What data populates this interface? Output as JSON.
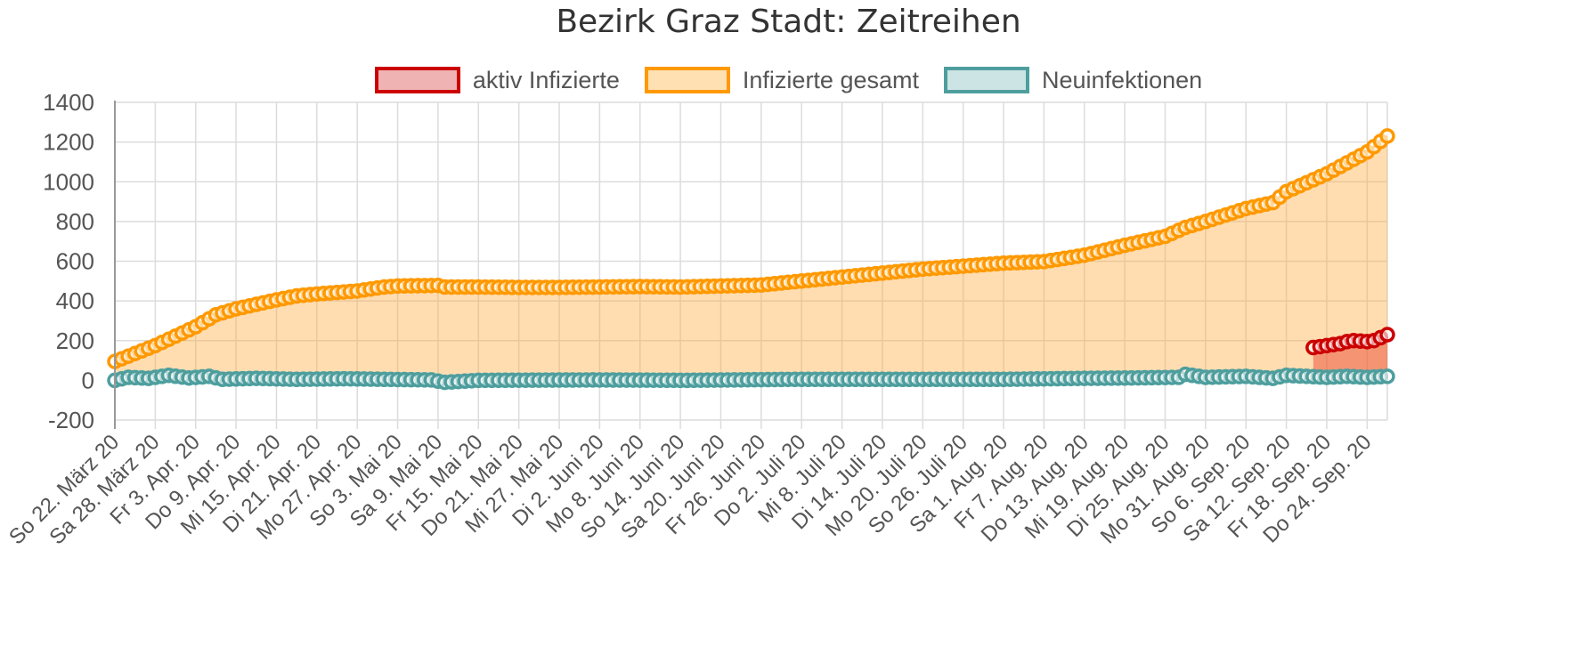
{
  "chart_data": {
    "type": "line",
    "title": "Bezirk Graz Stadt: Zeitreihen",
    "xlabel": "",
    "ylabel": "",
    "ylim": [
      -200,
      1400
    ],
    "yticks": [
      "1400",
      "1200",
      "1000",
      "800",
      "600",
      "400",
      "200",
      "0",
      "-200"
    ],
    "xtick_labels": [
      "So 22. März 20",
      "Sa 28. März 20",
      "Fr 3. Apr. 20",
      "Do 9. Apr. 20",
      "Mi 15. Apr. 20",
      "Di 21. Apr. 20",
      "Mo 27. Apr. 20",
      "So 3. Mai 20",
      "Sa 9. Mai 20",
      "Fr 15. Mai 20",
      "Do 21. Mai 20",
      "Mi 27. Mai 20",
      "Di 2. Juni 20",
      "Mo 8. Juni 20",
      "So 14. Juni 20",
      "Sa 20. Juni 20",
      "Fr 26. Juni 20",
      "Do 2. Juli 20",
      "Mi 8. Juli 20",
      "Di 14. Juli 20",
      "Mo 20. Juli 20",
      "So 26. Juli 20",
      "Sa 1. Aug. 20",
      "Fr 7. Aug. 20",
      "Do 13. Aug. 20",
      "Mi 19. Aug. 20",
      "Di 25. Aug. 20",
      "Mo 31. Aug. 20",
      "So 6. Sep. 20",
      "Sa 12. Sep. 20",
      "Fr 18. Sep. 20",
      "Do 24. Sep. 20"
    ],
    "x_start": "2020-03-22",
    "x_end": "2020-09-27",
    "grid": true,
    "legend_position": "top",
    "series": [
      {
        "name": "aktiv Infizierte",
        "line_color": "#cc0000",
        "fill_color": "rgba(230,60,40,0.45)",
        "legend_fill": "#f0b3b3",
        "start": "2020-09-16",
        "points": [
          [
            "2020-09-16",
            165
          ],
          [
            "2020-09-17",
            170
          ],
          [
            "2020-09-18",
            175
          ],
          [
            "2020-09-19",
            180
          ],
          [
            "2020-09-20",
            185
          ],
          [
            "2020-09-21",
            195
          ],
          [
            "2020-09-22",
            200
          ],
          [
            "2020-09-23",
            198
          ],
          [
            "2020-09-24",
            195
          ],
          [
            "2020-09-25",
            200
          ],
          [
            "2020-09-26",
            215
          ],
          [
            "2020-09-27",
            230
          ]
        ]
      },
      {
        "name": "Infizierte gesamt",
        "line_color": "#ff9900",
        "fill_color": "rgba(255,170,60,0.40)",
        "legend_fill": "#ffe0b2",
        "start": "2020-03-22",
        "points": [
          [
            "2020-03-22",
            95
          ],
          [
            "2020-03-28",
            175
          ],
          [
            "2020-04-03",
            270
          ],
          [
            "2020-04-06",
            330
          ],
          [
            "2020-04-09",
            360
          ],
          [
            "2020-04-15",
            405
          ],
          [
            "2020-04-18",
            425
          ],
          [
            "2020-04-21",
            435
          ],
          [
            "2020-04-27",
            450
          ],
          [
            "2020-05-01",
            470
          ],
          [
            "2020-05-03",
            475
          ],
          [
            "2020-05-09",
            478
          ],
          [
            "2020-05-10",
            470
          ],
          [
            "2020-05-15",
            470
          ],
          [
            "2020-05-21",
            468
          ],
          [
            "2020-05-27",
            468
          ],
          [
            "2020-06-02",
            470
          ],
          [
            "2020-06-08",
            472
          ],
          [
            "2020-06-14",
            470
          ],
          [
            "2020-06-20",
            475
          ],
          [
            "2020-06-26",
            480
          ],
          [
            "2020-07-02",
            500
          ],
          [
            "2020-07-08",
            520
          ],
          [
            "2020-07-14",
            540
          ],
          [
            "2020-07-20",
            560
          ],
          [
            "2020-07-26",
            575
          ],
          [
            "2020-08-01",
            590
          ],
          [
            "2020-08-07",
            598
          ],
          [
            "2020-08-13",
            630
          ],
          [
            "2020-08-19",
            680
          ],
          [
            "2020-08-25",
            725
          ],
          [
            "2020-08-28",
            770
          ],
          [
            "2020-08-31",
            800
          ],
          [
            "2020-09-06",
            865
          ],
          [
            "2020-09-10",
            895
          ],
          [
            "2020-09-12",
            950
          ],
          [
            "2020-09-18",
            1040
          ],
          [
            "2020-09-24",
            1150
          ],
          [
            "2020-09-27",
            1230
          ]
        ]
      },
      {
        "name": "Neuinfektionen",
        "line_color": "#4e9e9e",
        "fill_color": "rgba(180,215,215,0.30)",
        "legend_fill": "#cde4e4",
        "start": "2020-03-22",
        "points": [
          [
            "2020-03-22",
            0
          ],
          [
            "2020-03-24",
            15
          ],
          [
            "2020-03-27",
            10
          ],
          [
            "2020-03-30",
            25
          ],
          [
            "2020-04-02",
            12
          ],
          [
            "2020-04-05",
            20
          ],
          [
            "2020-04-07",
            5
          ],
          [
            "2020-04-12",
            10
          ],
          [
            "2020-04-18",
            5
          ],
          [
            "2020-04-25",
            8
          ],
          [
            "2020-05-01",
            5
          ],
          [
            "2020-05-08",
            2
          ],
          [
            "2020-05-10",
            -10
          ],
          [
            "2020-05-15",
            0
          ],
          [
            "2020-06-01",
            2
          ],
          [
            "2020-06-15",
            0
          ],
          [
            "2020-07-01",
            5
          ],
          [
            "2020-07-15",
            5
          ],
          [
            "2020-08-01",
            5
          ],
          [
            "2020-08-13",
            10
          ],
          [
            "2020-08-20",
            12
          ],
          [
            "2020-08-27",
            15
          ],
          [
            "2020-08-28",
            30
          ],
          [
            "2020-08-31",
            15
          ],
          [
            "2020-09-06",
            20
          ],
          [
            "2020-09-10",
            10
          ],
          [
            "2020-09-12",
            25
          ],
          [
            "2020-09-18",
            15
          ],
          [
            "2020-09-21",
            20
          ],
          [
            "2020-09-24",
            15
          ],
          [
            "2020-09-27",
            20
          ]
        ]
      }
    ]
  }
}
